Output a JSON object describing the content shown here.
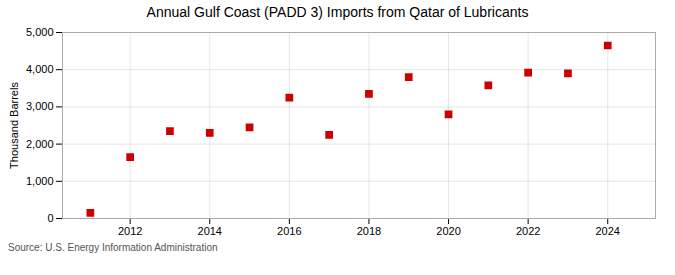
{
  "chart_data": {
    "type": "scatter",
    "title": "Annual Gulf Coast (PADD 3) Imports from Qatar of Lubricants",
    "ylabel": "Thousand Barrels",
    "annotations": [
      "Source: U.S. Energy Information Administration"
    ],
    "x": [
      2011,
      2012,
      2013,
      2014,
      2015,
      2016,
      2017,
      2018,
      2019,
      2020,
      2021,
      2022,
      2023,
      2024
    ],
    "values": [
      150,
      1650,
      2350,
      2300,
      2450,
      3250,
      2250,
      3350,
      3800,
      2800,
      3580,
      3920,
      3900,
      4650
    ],
    "xlim": [
      2010.3,
      2025.2
    ],
    "xticks": [
      2012,
      2014,
      2016,
      2018,
      2020,
      2022,
      2024
    ],
    "ylim": [
      0,
      5000
    ],
    "yticks": [
      0,
      {
        "value": 1000,
        "label": "1,000"
      },
      {
        "value": 2000,
        "label": "2,000"
      },
      {
        "value": 3000,
        "label": "3,000"
      },
      {
        "value": 4000,
        "label": "4,000"
      },
      {
        "value": 5000,
        "label": "5,000"
      }
    ],
    "color": "#cc0000",
    "marker": "square",
    "grid": true
  }
}
